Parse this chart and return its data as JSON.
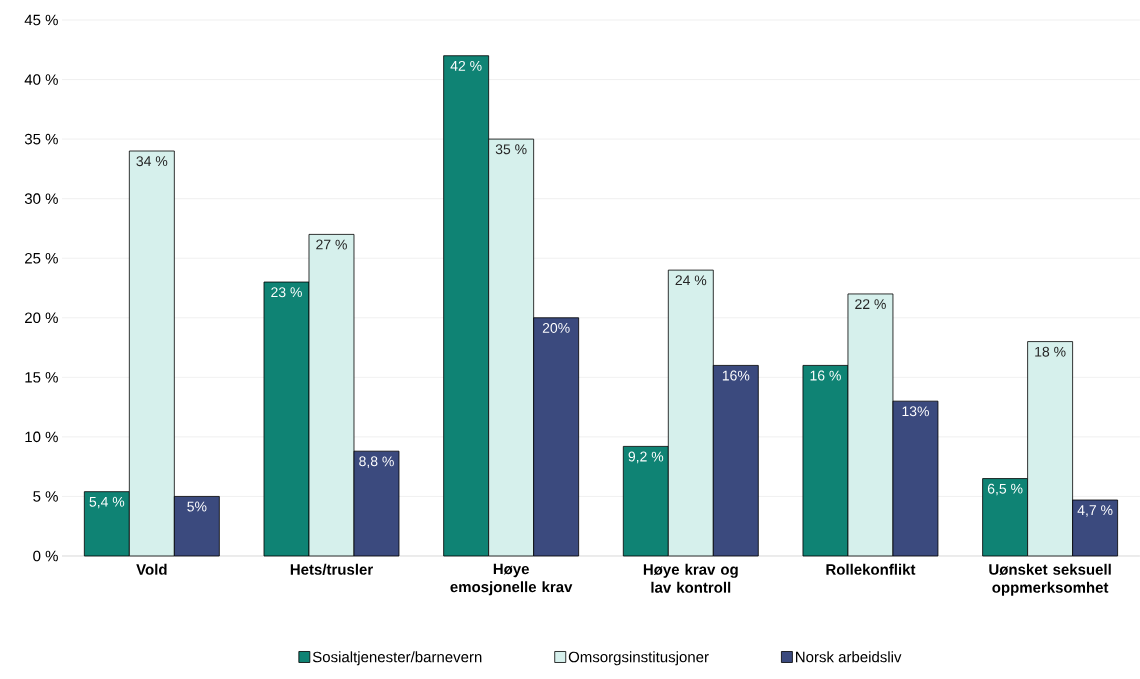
{
  "chart_data": {
    "type": "bar",
    "categories": [
      "Vold",
      "Hets/trusler",
      "Høye emosjonelle krav",
      "Høye krav og lav kontroll",
      "Rollekonflikt",
      "Uønsket seksuell oppmerksomhet"
    ],
    "series": [
      {
        "name": "Sosialtjenester/barnevern",
        "color": "#0f8374",
        "values": [
          5.4,
          23,
          42,
          9.2,
          16,
          6.5
        ],
        "value_labels": [
          "5,4 %",
          "23 %",
          "42 %",
          "9,2 %",
          "16 %",
          "6,5 %"
        ]
      },
      {
        "name": "Omsorgsinstitusjoner",
        "color": "#d6f0ec",
        "values": [
          34,
          27,
          35,
          24,
          22,
          18
        ],
        "value_labels": [
          "34 %",
          "27 %",
          "35 %",
          "24 %",
          "22 %",
          "18 %"
        ]
      },
      {
        "name": "Norsk arbeidsliv",
        "color": "#3b4a7e",
        "values": [
          5,
          8.8,
          20,
          16,
          13,
          4.7
        ],
        "value_labels": [
          "5%",
          "8,8 %",
          "20%",
          "16%",
          "13%",
          "4,7 %"
        ]
      }
    ],
    "ylim": [
      0,
      45
    ],
    "yticks": [
      {
        "value": 0,
        "label": "0 %"
      },
      {
        "value": 5,
        "label": "5 %"
      },
      {
        "value": 10,
        "label": "10 %"
      },
      {
        "value": 15,
        "label": "15 %"
      },
      {
        "value": 20,
        "label": "20 %"
      },
      {
        "value": 25,
        "label": "25 %"
      },
      {
        "value": 30,
        "label": "30 %"
      },
      {
        "value": 35,
        "label": "35 %"
      },
      {
        "value": 40,
        "label": "40 %"
      },
      {
        "value": 45,
        "label": "45 %"
      }
    ],
    "grid": "y",
    "legend": "bottom"
  }
}
